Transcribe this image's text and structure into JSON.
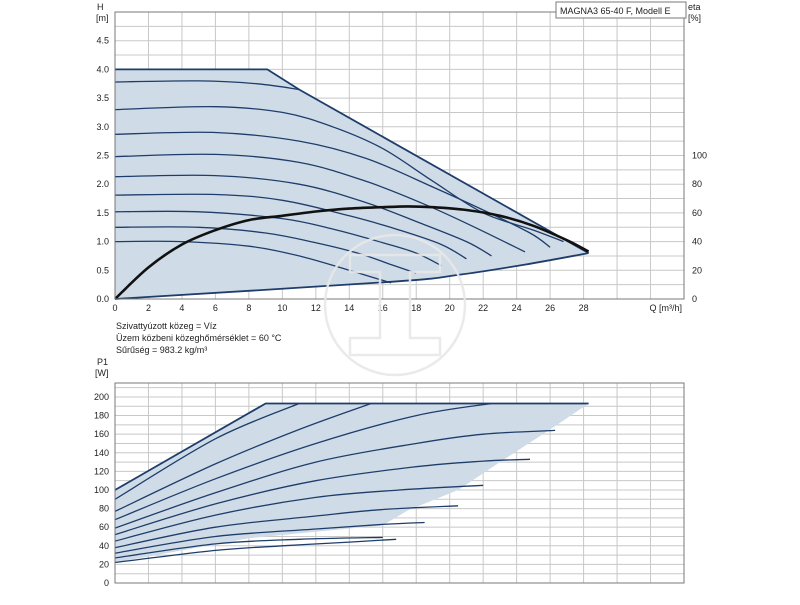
{
  "header": {
    "title": "MAGNA3 65-40 F, Modell E"
  },
  "notes": [
    "Szivattyúzott közeg = Víz",
    "Üzem közbeni közeghőmérséklet = 60 °C",
    "Sűrűség = 983.2 kg/m³"
  ],
  "chart_data": [
    {
      "type": "line",
      "axes": {
        "y_left_label": [
          "H",
          "[m]"
        ],
        "y_right_label": [
          "eta",
          "[%]"
        ],
        "x_label": "Q [m³/h]",
        "xlim": [
          0,
          34
        ],
        "ylim": [
          0,
          5.0
        ],
        "y2lim": [
          0,
          200
        ],
        "x_ticks": [
          "0",
          "2",
          "4",
          "6",
          "8",
          "10",
          "12",
          "14",
          "16",
          "18",
          "20",
          "22",
          "24",
          "26",
          "28"
        ],
        "y_ticks": [
          "0.0",
          "0.5",
          "1.0",
          "1.5",
          "2.0",
          "2.5",
          "3.0",
          "3.5",
          "4.0",
          "4.5"
        ],
        "y2_ticks": [
          "0",
          "20",
          "40",
          "60",
          "80",
          "100"
        ],
        "grid": true
      },
      "envelope": {
        "top": [
          [
            0,
            4.0
          ],
          [
            9.1,
            4.0
          ],
          [
            11,
            3.65
          ],
          [
            28.3,
            0.8
          ]
        ],
        "bottom": [
          [
            28.3,
            0.8
          ],
          [
            24.5,
            0.6
          ],
          [
            20.5,
            0.42
          ],
          [
            16.5,
            0.3
          ],
          [
            0,
            0
          ]
        ]
      },
      "series": [
        {
          "values": [
            [
              0,
              4.0
            ],
            [
              4,
              4.0
            ],
            [
              9.1,
              4.0
            ],
            [
              11,
              3.65
            ],
            [
              28.3,
              0.8
            ]
          ]
        },
        {
          "values": [
            [
              0,
              3.78
            ],
            [
              5,
              3.8
            ],
            [
              8.5,
              3.75
            ],
            [
              11,
              3.65
            ]
          ]
        },
        {
          "values": [
            [
              0,
              3.3
            ],
            [
              6,
              3.35
            ],
            [
              10,
              3.25
            ],
            [
              13,
              3.0
            ],
            [
              16,
              2.62
            ],
            [
              19,
              2.05
            ],
            [
              22,
              1.5
            ],
            [
              25,
              1.2
            ],
            [
              26.8,
              1.0
            ]
          ]
        },
        {
          "values": [
            [
              0,
              2.87
            ],
            [
              6,
              2.9
            ],
            [
              11,
              2.75
            ],
            [
              15,
              2.45
            ],
            [
              19,
              1.95
            ],
            [
              22,
              1.55
            ],
            [
              24.8,
              1.15
            ],
            [
              26,
              0.9
            ]
          ]
        },
        {
          "values": [
            [
              0,
              2.48
            ],
            [
              6,
              2.52
            ],
            [
              11,
              2.38
            ],
            [
              15,
              2.05
            ],
            [
              18.5,
              1.65
            ],
            [
              21.5,
              1.25
            ],
            [
              24.5,
              0.82
            ]
          ]
        },
        {
          "values": [
            [
              0,
              2.13
            ],
            [
              6,
              2.15
            ],
            [
              11,
              2.0
            ],
            [
              15,
              1.68
            ],
            [
              18,
              1.35
            ],
            [
              21,
              1.0
            ],
            [
              22.5,
              0.75
            ]
          ]
        },
        {
          "values": [
            [
              0,
              1.81
            ],
            [
              6,
              1.82
            ],
            [
              10,
              1.72
            ],
            [
              14,
              1.45
            ],
            [
              17,
              1.2
            ],
            [
              19.5,
              0.95
            ],
            [
              21,
              0.7
            ]
          ]
        },
        {
          "values": [
            [
              0,
              1.52
            ],
            [
              5,
              1.52
            ],
            [
              10,
              1.4
            ],
            [
              13,
              1.22
            ],
            [
              16,
              0.98
            ],
            [
              18,
              0.8
            ],
            [
              19.5,
              0.58
            ]
          ]
        },
        {
          "values": [
            [
              0,
              1.25
            ],
            [
              5,
              1.25
            ],
            [
              9,
              1.15
            ],
            [
              12,
              0.98
            ],
            [
              14.5,
              0.8
            ],
            [
              16.5,
              0.6
            ],
            [
              18,
              0.45
            ]
          ]
        },
        {
          "values": [
            [
              0,
              1.0
            ],
            [
              4,
              1.0
            ],
            [
              8,
              0.92
            ],
            [
              11,
              0.75
            ],
            [
              14,
              0.5
            ],
            [
              16.5,
              0.28
            ]
          ]
        }
      ],
      "efficiency": {
        "name": "eta",
        "unit": "%",
        "values": [
          [
            0,
            0
          ],
          [
            2,
            22
          ],
          [
            4,
            38
          ],
          [
            6,
            48
          ],
          [
            8,
            55
          ],
          [
            10,
            58
          ],
          [
            12,
            61
          ],
          [
            14,
            63
          ],
          [
            16,
            64
          ],
          [
            17.5,
            64.5
          ],
          [
            19,
            64
          ],
          [
            21,
            62
          ],
          [
            23,
            58
          ],
          [
            25,
            51
          ],
          [
            27,
            41
          ],
          [
            28.3,
            33
          ]
        ]
      }
    },
    {
      "type": "line",
      "axes": {
        "y_label": [
          "P1",
          "[W]"
        ],
        "xlim": [
          0,
          34
        ],
        "ylim": [
          0,
          215
        ],
        "y_ticks": [
          "0",
          "20",
          "40",
          "60",
          "80",
          "100",
          "120",
          "140",
          "160",
          "180",
          "200"
        ],
        "grid": true
      },
      "envelope": {
        "top": [
          [
            0,
            100
          ],
          [
            9,
            193
          ],
          [
            28.3,
            193
          ]
        ],
        "bottom": [
          [
            28.3,
            193
          ],
          [
            26,
            165
          ],
          [
            23,
            130
          ],
          [
            20.5,
            100
          ],
          [
            17.5,
            78
          ],
          [
            16,
            62
          ],
          [
            12,
            55
          ],
          [
            8,
            48
          ],
          [
            0,
            22
          ]
        ]
      },
      "series": [
        {
          "values": [
            [
              0,
              100
            ],
            [
              9,
              193
            ],
            [
              28.3,
              193
            ]
          ]
        },
        {
          "values": [
            [
              0,
              90
            ],
            [
              6,
              155
            ],
            [
              11,
              193
            ]
          ]
        },
        {
          "values": [
            [
              0,
              77
            ],
            [
              6,
              128
            ],
            [
              11,
              165
            ],
            [
              15.3,
              193
            ]
          ]
        },
        {
          "values": [
            [
              0,
              68
            ],
            [
              6,
              112
            ],
            [
              12,
              150
            ],
            [
              18,
              180
            ],
            [
              22.5,
              193
            ]
          ]
        },
        {
          "values": [
            [
              0,
              59
            ],
            [
              6,
              97
            ],
            [
              12,
              130
            ],
            [
              18,
              150
            ],
            [
              22,
              160
            ],
            [
              26.3,
              164
            ]
          ]
        },
        {
          "values": [
            [
              0,
              52
            ],
            [
              6,
              85
            ],
            [
              12,
              110
            ],
            [
              18,
              125
            ],
            [
              22,
              131
            ],
            [
              24.8,
              133
            ]
          ]
        },
        {
          "values": [
            [
              0,
              45
            ],
            [
              6,
              73
            ],
            [
              12,
              92
            ],
            [
              17,
              100
            ],
            [
              22,
              105
            ]
          ]
        },
        {
          "values": [
            [
              0,
              38
            ],
            [
              6,
              60
            ],
            [
              12,
              72
            ],
            [
              16,
              79
            ],
            [
              20.5,
              83
            ]
          ]
        },
        {
          "values": [
            [
              0,
              32
            ],
            [
              6,
              50
            ],
            [
              12,
              58
            ],
            [
              16,
              63
            ],
            [
              18.5,
              65
            ]
          ]
        },
        {
          "values": [
            [
              0,
              27
            ],
            [
              6,
              42
            ],
            [
              11,
              47
            ],
            [
              16,
              49
            ]
          ]
        },
        {
          "values": [
            [
              0,
              22
            ],
            [
              6,
              35
            ],
            [
              10,
              40
            ],
            [
              14,
              44
            ],
            [
              16.8,
              47
            ]
          ]
        }
      ]
    }
  ]
}
